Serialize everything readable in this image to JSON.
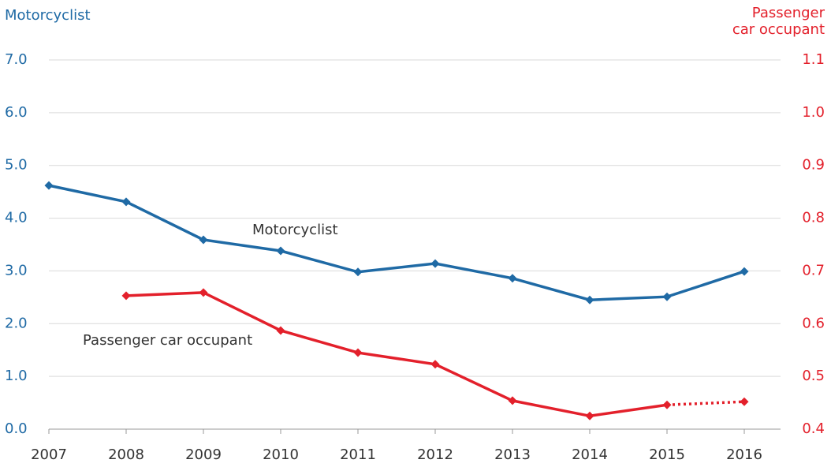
{
  "chart_data": {
    "type": "line",
    "y_label": "Motorcyclist",
    "y2_label": "Passenger car occupant",
    "annotations": [
      "Motorcyclist",
      "Passenger car occupant"
    ],
    "categories": [
      "2007",
      "2008",
      "2009",
      "2010",
      "2011",
      "2012",
      "2013",
      "2014",
      "2015",
      "2016"
    ],
    "series": [
      {
        "name": "Motorcyclist",
        "color": "#1f6aa5",
        "axis": "y",
        "values": [
          4.62,
          4.31,
          3.59,
          3.38,
          2.98,
          3.14,
          2.86,
          2.45,
          2.51,
          2.99
        ]
      },
      {
        "name": "Passenger car occupant",
        "color": "#e3202b",
        "axis": "y2",
        "values": [
          null,
          0.653,
          0.659,
          0.587,
          0.545,
          0.523,
          0.454,
          0.425,
          0.446,
          0.452
        ],
        "dotted_from": "2015"
      }
    ],
    "ylim": [
      0,
      7
    ],
    "yticks": [
      {
        "value": 0,
        "label": "0.0"
      },
      {
        "value": 1,
        "label": "1.0"
      },
      {
        "value": 2,
        "label": "2.0"
      },
      {
        "value": 3,
        "label": "3.0"
      },
      {
        "value": 4,
        "label": "4.0"
      },
      {
        "value": 5,
        "label": "5.0"
      },
      {
        "value": 6,
        "label": "6.0"
      },
      {
        "value": 7,
        "label": "7.0"
      }
    ],
    "y2lim": [
      0.4,
      1.1
    ],
    "y2ticks": [
      0.4,
      0.5,
      0.6,
      0.7,
      0.8,
      0.9,
      {
        "value": 1,
        "label": "1.0"
      },
      1.1
    ],
    "grid": true
  }
}
